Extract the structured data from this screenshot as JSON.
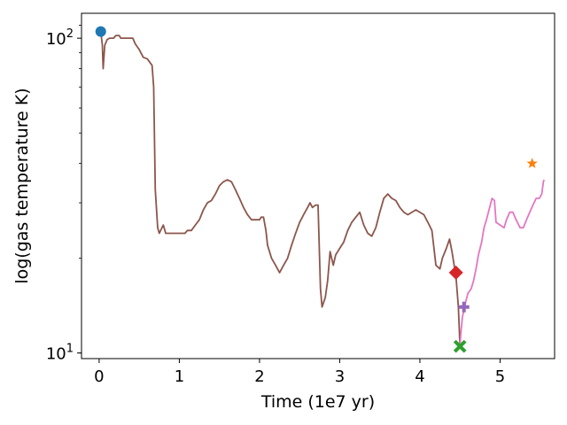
{
  "chart_data": {
    "type": "line",
    "title": "",
    "xlabel": "Time (1e7 yr)",
    "ylabel": "log(gas temperature K)",
    "xlim": [
      -0.22,
      5.68
    ],
    "ylim": [
      9.6,
      120
    ],
    "yscale": "log",
    "x_ticks": [
      {
        "value": 0,
        "label": "0"
      },
      {
        "value": 1,
        "label": "1"
      },
      {
        "value": 2,
        "label": "2"
      },
      {
        "value": 3,
        "label": "3"
      },
      {
        "value": 4,
        "label": "4"
      },
      {
        "value": 5,
        "label": "5"
      }
    ],
    "y_ticks": [
      {
        "value": 10,
        "base": "10",
        "exp": "1"
      },
      {
        "value": 100,
        "base": "10",
        "exp": "2"
      }
    ],
    "grid": false,
    "series": [
      {
        "color": "#8c564b",
        "points": [
          [
            0.02,
            105
          ],
          [
            0.04,
            95
          ],
          [
            0.05,
            80
          ],
          [
            0.07,
            95
          ],
          [
            0.1,
            99
          ],
          [
            0.13,
            100
          ],
          [
            0.18,
            100
          ],
          [
            0.21,
            102
          ],
          [
            0.25,
            102
          ],
          [
            0.27,
            100
          ],
          [
            0.35,
            100
          ],
          [
            0.42,
            100
          ],
          [
            0.45,
            96
          ],
          [
            0.5,
            92
          ],
          [
            0.55,
            87
          ],
          [
            0.6,
            86
          ],
          [
            0.66,
            82
          ],
          [
            0.68,
            70
          ],
          [
            0.7,
            33
          ],
          [
            0.73,
            25
          ],
          [
            0.75,
            24
          ],
          [
            0.8,
            25.5
          ],
          [
            0.83,
            24
          ],
          [
            0.9,
            24
          ],
          [
            1.0,
            24
          ],
          [
            1.07,
            24
          ],
          [
            1.1,
            24.5
          ],
          [
            1.15,
            24.5
          ],
          [
            1.2,
            25.5
          ],
          [
            1.25,
            26.5
          ],
          [
            1.3,
            28.5
          ],
          [
            1.35,
            30
          ],
          [
            1.4,
            30.5
          ],
          [
            1.45,
            32
          ],
          [
            1.5,
            34
          ],
          [
            1.55,
            35
          ],
          [
            1.6,
            35.5
          ],
          [
            1.65,
            35
          ],
          [
            1.7,
            33
          ],
          [
            1.75,
            31
          ],
          [
            1.8,
            29
          ],
          [
            1.85,
            27.5
          ],
          [
            1.9,
            26.5
          ],
          [
            2.0,
            26.5
          ],
          [
            2.02,
            27
          ],
          [
            2.05,
            27
          ],
          [
            2.08,
            24.5
          ],
          [
            2.1,
            22
          ],
          [
            2.15,
            20
          ],
          [
            2.2,
            19
          ],
          [
            2.25,
            18
          ],
          [
            2.3,
            19
          ],
          [
            2.35,
            20
          ],
          [
            2.4,
            22
          ],
          [
            2.45,
            24
          ],
          [
            2.5,
            26
          ],
          [
            2.55,
            27.5
          ],
          [
            2.6,
            29
          ],
          [
            2.63,
            30
          ],
          [
            2.66,
            29
          ],
          [
            2.7,
            29.5
          ],
          [
            2.73,
            29.5
          ],
          [
            2.76,
            16
          ],
          [
            2.78,
            14
          ],
          [
            2.82,
            15
          ],
          [
            2.85,
            17
          ],
          [
            2.88,
            21
          ],
          [
            2.92,
            19
          ],
          [
            2.95,
            20.5
          ],
          [
            3.0,
            21.5
          ],
          [
            3.05,
            22.5
          ],
          [
            3.1,
            24.5
          ],
          [
            3.15,
            26
          ],
          [
            3.2,
            27
          ],
          [
            3.25,
            28
          ],
          [
            3.3,
            25.5
          ],
          [
            3.35,
            24
          ],
          [
            3.4,
            23.5
          ],
          [
            3.45,
            25
          ],
          [
            3.5,
            28
          ],
          [
            3.55,
            31
          ],
          [
            3.6,
            32
          ],
          [
            3.65,
            31
          ],
          [
            3.7,
            30.5
          ],
          [
            3.75,
            29
          ],
          [
            3.8,
            28
          ],
          [
            3.85,
            27.5
          ],
          [
            3.9,
            28
          ],
          [
            3.95,
            28.5
          ],
          [
            4.0,
            28
          ],
          [
            4.05,
            27.5
          ],
          [
            4.1,
            26
          ],
          [
            4.15,
            24.5
          ],
          [
            4.2,
            19
          ],
          [
            4.25,
            18.5
          ],
          [
            4.28,
            20
          ],
          [
            4.33,
            21.5
          ],
          [
            4.37,
            23
          ],
          [
            4.4,
            21
          ],
          [
            4.45,
            17.5
          ],
          [
            4.48,
            14
          ],
          [
            4.5,
            10.5
          ]
        ]
      },
      {
        "color": "#e377c2",
        "points": [
          [
            4.5,
            10.5
          ],
          [
            4.51,
            11.5
          ],
          [
            4.53,
            13
          ],
          [
            4.57,
            14.5
          ],
          [
            4.6,
            15.5
          ],
          [
            4.64,
            16
          ],
          [
            4.67,
            17
          ],
          [
            4.7,
            18.5
          ],
          [
            4.73,
            20.5
          ],
          [
            4.77,
            22.5
          ],
          [
            4.8,
            25
          ],
          [
            4.83,
            26.5
          ],
          [
            4.87,
            29
          ],
          [
            4.9,
            31
          ],
          [
            4.93,
            30.5
          ],
          [
            4.95,
            26
          ],
          [
            5.0,
            25.5
          ],
          [
            5.05,
            25
          ],
          [
            5.08,
            26.5
          ],
          [
            5.12,
            28
          ],
          [
            5.16,
            28
          ],
          [
            5.2,
            26.5
          ],
          [
            5.25,
            25
          ],
          [
            5.29,
            25
          ],
          [
            5.33,
            26.5
          ],
          [
            5.37,
            28
          ],
          [
            5.41,
            29.5
          ],
          [
            5.45,
            31
          ],
          [
            5.49,
            31
          ],
          [
            5.52,
            32
          ],
          [
            5.54,
            35
          ],
          [
            5.55,
            35.5
          ]
        ]
      }
    ],
    "markers": [
      {
        "shape": "circle",
        "x": 0.02,
        "y": 105,
        "color": "#1f77b4"
      },
      {
        "shape": "diamond",
        "x": 4.45,
        "y": 18,
        "color": "#d62728"
      },
      {
        "shape": "plus",
        "x": 4.55,
        "y": 14,
        "color": "#9467bd"
      },
      {
        "shape": "x",
        "x": 4.5,
        "y": 10.5,
        "color": "#2ca02c"
      },
      {
        "shape": "star",
        "x": 5.4,
        "y": 40,
        "color": "#ff7f0e"
      }
    ]
  }
}
